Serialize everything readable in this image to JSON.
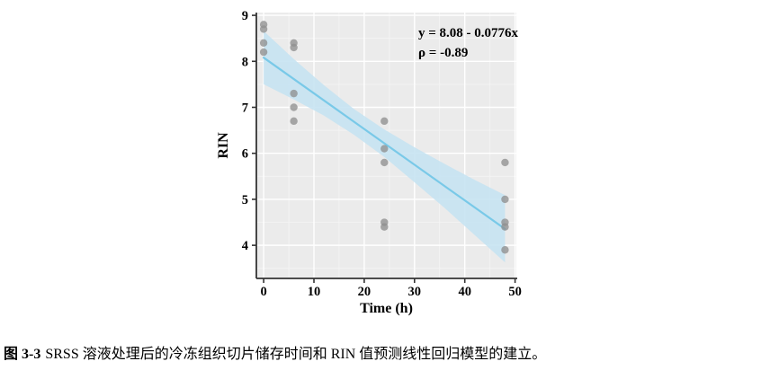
{
  "chart_data": {
    "type": "scatter",
    "title": "",
    "xlabel": "Time (h)",
    "ylabel": "RIN",
    "x_ticks": [
      0,
      10,
      20,
      30,
      40,
      50
    ],
    "y_ticks": [
      4,
      5,
      6,
      7,
      8,
      9
    ],
    "xlim": [
      -1.45,
      50.25
    ],
    "ylim": [
      3.28,
      9.06
    ],
    "grid": "major-white-on-gray with faint minor",
    "legend": "none",
    "annotation": {
      "equation": "y = 8.08 - 0.0776x",
      "rho": "ρ = -0.89"
    },
    "regression": {
      "intercept": 8.08,
      "slope": -0.0776,
      "x_start": 0,
      "x_end": 48,
      "correlation_rho": -0.89
    },
    "points": [
      {
        "x": 0,
        "y": 8.8
      },
      {
        "x": 0,
        "y": 8.7
      },
      {
        "x": 0,
        "y": 8.4
      },
      {
        "x": 0,
        "y": 8.2
      },
      {
        "x": 6,
        "y": 8.4
      },
      {
        "x": 6,
        "y": 8.3
      },
      {
        "x": 6,
        "y": 7.3
      },
      {
        "x": 6,
        "y": 7.0
      },
      {
        "x": 6,
        "y": 6.7
      },
      {
        "x": 24,
        "y": 6.7
      },
      {
        "x": 24,
        "y": 6.1
      },
      {
        "x": 24,
        "y": 5.8
      },
      {
        "x": 24,
        "y": 4.5
      },
      {
        "x": 24,
        "y": 4.4
      },
      {
        "x": 48,
        "y": 5.8
      },
      {
        "x": 48,
        "y": 5.0
      },
      {
        "x": 48,
        "y": 4.5
      },
      {
        "x": 48,
        "y": 4.4
      },
      {
        "x": 48,
        "y": 3.9
      }
    ],
    "ci_band": {
      "x": [
        0,
        6,
        12,
        18,
        24,
        30,
        36,
        42,
        48
      ],
      "upper": [
        8.66,
        8.05,
        7.48,
        6.96,
        6.52,
        6.13,
        5.77,
        5.42,
        5.09
      ],
      "lower": [
        7.5,
        7.17,
        6.82,
        6.4,
        5.92,
        5.37,
        4.81,
        4.22,
        3.63
      ]
    },
    "colors": {
      "panel_bg": "#EBEBEB",
      "grid_major": "#FFFFFF",
      "grid_minor": "#F5F5F5",
      "point": "#8F8F8F",
      "line": "#79C9E8",
      "band": "#C6E3F2",
      "axis": "#333333",
      "text": "#000000"
    }
  },
  "caption": {
    "label": "图 3-3",
    "text": "SRSS 溶液处理后的冷冻组织切片储存时间和 RIN 值预测线性回归模型的建立。"
  }
}
